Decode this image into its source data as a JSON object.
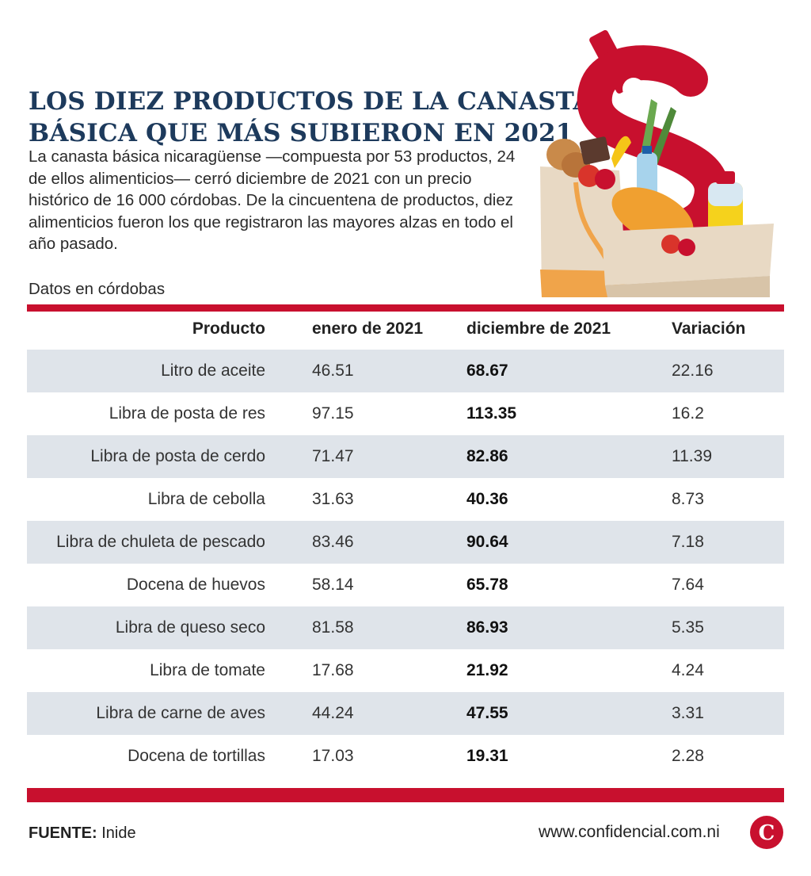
{
  "title": {
    "line1": "LOS DIEZ PRODUCTOS DE LA CANASTA",
    "line2": "BÁSICA QUE MÁS SUBIERON EN 2021"
  },
  "intro": "La canasta básica nicaragüense —compuesta por 53 productos, 24 de ellos alimenticios— cerró diciembre de 2021 con un precio histórico de 16 000 córdobas. De la cincuentena de productos, diez alimenticios fueron los que registraron las mayores alzas en todo el año pasado.",
  "units_note": "Datos en córdobas",
  "colors": {
    "title": "#1d3a5c",
    "accent_red": "#c8102e",
    "row_shade": "#dfe4ea"
  },
  "illustration": "grocery-bags-with-dollar-sign-icon",
  "chart_data": {
    "type": "table",
    "columns": [
      "Producto",
      "enero de 2021",
      "diciembre de 2021",
      "Variación"
    ],
    "rows": [
      {
        "product": "Litro de aceite",
        "jan": "46.51",
        "dec": "68.67",
        "var": "22.16"
      },
      {
        "product": "Libra de posta de res",
        "jan": "97.15",
        "dec": "113.35",
        "var": "16.2"
      },
      {
        "product": "Libra de posta de cerdo",
        "jan": "71.47",
        "dec": "82.86",
        "var": "11.39"
      },
      {
        "product": "Libra de cebolla",
        "jan": "31.63",
        "dec": "40.36",
        "var": "8.73"
      },
      {
        "product": "Libra de chuleta de pescado",
        "jan": "83.46",
        "dec": "90.64",
        "var": "7.18"
      },
      {
        "product": "Docena de huevos",
        "jan": "58.14",
        "dec": "65.78",
        "var": "7.64"
      },
      {
        "product": "Libra de queso seco",
        "jan": "81.58",
        "dec": "86.93",
        "var": "5.35"
      },
      {
        "product": "Libra de tomate",
        "jan": "17.68",
        "dec": "21.92",
        "var": "4.24"
      },
      {
        "product": "Libra de carne de aves",
        "jan": "44.24",
        "dec": "47.55",
        "var": "3.31"
      },
      {
        "product": "Docena de tortillas",
        "jan": "17.03",
        "dec": "19.31",
        "var": "2.28"
      }
    ]
  },
  "footer": {
    "source_label": "FUENTE:",
    "source_value": "Inide",
    "url": "www.confidencial.com.ni",
    "logo_letter": "C"
  }
}
